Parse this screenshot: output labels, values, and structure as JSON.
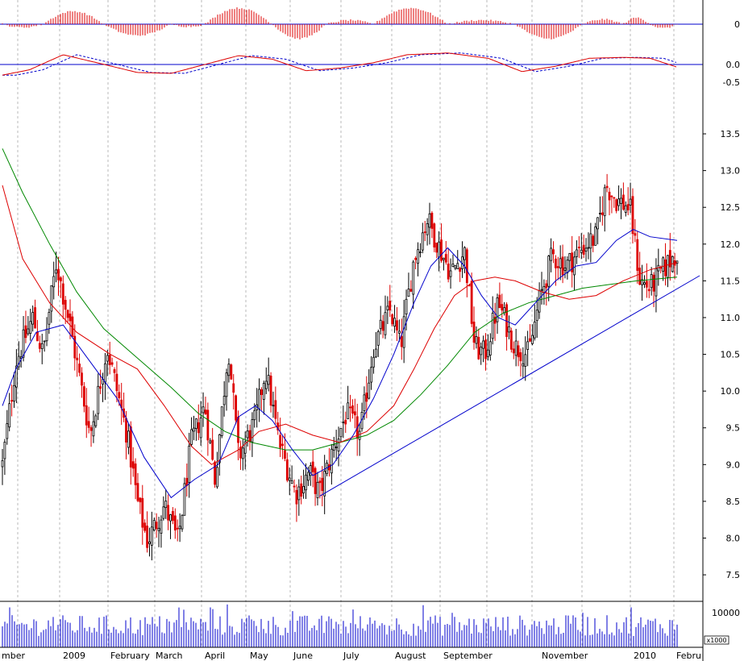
{
  "chart_data": {
    "type": "candlestick",
    "months": [
      "mber",
      "2009",
      "February",
      "March",
      "April",
      "May",
      "June",
      "July",
      "August",
      "September",
      "November",
      "2010",
      "Febru"
    ],
    "price_ticks": [
      "7.5",
      "8.0",
      "8.5",
      "9.0",
      "9.5",
      "10.0",
      "10.5",
      "11.0",
      "11.5",
      "12.0",
      "12.5",
      "13.0",
      "13.5"
    ],
    "price_range": [
      7.15,
      13.95
    ],
    "macd_hist_ticks": [
      "0"
    ],
    "macd_ticks": [
      "0.0",
      "-0.5"
    ],
    "volume_ticks": [
      "10000"
    ],
    "volume_unit": "x1000",
    "colors": {
      "up": "#000000",
      "down": "#dd0000",
      "ma_short": "#0000cc",
      "ma_mid": "#dd0000",
      "ma_long": "#008800",
      "trendline": "#0000cc",
      "macd": "#dd0000",
      "signal": "#0000cc",
      "volume": "#0000cc"
    },
    "trendline": {
      "from": [
        0.47,
        8.57
      ],
      "to": [
        1.0,
        11.57
      ]
    },
    "price_path": [
      [
        0.0,
        9.0
      ],
      [
        0.02,
        10.4
      ],
      [
        0.045,
        11.0
      ],
      [
        0.06,
        10.5
      ],
      [
        0.08,
        11.75
      ],
      [
        0.1,
        10.9
      ],
      [
        0.13,
        9.4
      ],
      [
        0.155,
        10.6
      ],
      [
        0.185,
        9.4
      ],
      [
        0.2,
        8.5
      ],
      [
        0.215,
        7.95
      ],
      [
        0.24,
        8.45
      ],
      [
        0.26,
        7.95
      ],
      [
        0.28,
        9.3
      ],
      [
        0.3,
        9.8
      ],
      [
        0.315,
        8.8
      ],
      [
        0.335,
        10.6
      ],
      [
        0.35,
        9.1
      ],
      [
        0.375,
        9.6
      ],
      [
        0.39,
        10.3
      ],
      [
        0.41,
        9.3
      ],
      [
        0.435,
        8.6
      ],
      [
        0.455,
        8.9
      ],
      [
        0.47,
        8.6
      ],
      [
        0.49,
        9.2
      ],
      [
        0.51,
        9.7
      ],
      [
        0.53,
        9.4
      ],
      [
        0.55,
        10.6
      ],
      [
        0.575,
        11.1
      ],
      [
        0.59,
        10.6
      ],
      [
        0.61,
        11.8
      ],
      [
        0.63,
        12.35
      ],
      [
        0.65,
        11.9
      ],
      [
        0.665,
        11.6
      ],
      [
        0.685,
        11.9
      ],
      [
        0.7,
        10.6
      ],
      [
        0.715,
        10.5
      ],
      [
        0.735,
        11.2
      ],
      [
        0.76,
        10.6
      ],
      [
        0.78,
        10.5
      ],
      [
        0.795,
        11.2
      ],
      [
        0.815,
        11.85
      ],
      [
        0.835,
        11.7
      ],
      [
        0.86,
        11.95
      ],
      [
        0.88,
        12.1
      ],
      [
        0.895,
        12.8
      ],
      [
        0.91,
        12.6
      ],
      [
        0.93,
        12.5
      ],
      [
        0.945,
        11.5
      ],
      [
        0.96,
        11.4
      ],
      [
        0.975,
        11.6
      ],
      [
        1.0,
        11.9
      ]
    ],
    "ma_short": [
      [
        0.0,
        9.8
      ],
      [
        0.02,
        10.3
      ],
      [
        0.05,
        10.8
      ],
      [
        0.09,
        10.9
      ],
      [
        0.13,
        10.4
      ],
      [
        0.17,
        9.9
      ],
      [
        0.21,
        9.1
      ],
      [
        0.25,
        8.55
      ],
      [
        0.285,
        8.8
      ],
      [
        0.32,
        9.0
      ],
      [
        0.35,
        9.65
      ],
      [
        0.375,
        9.8
      ],
      [
        0.4,
        9.6
      ],
      [
        0.43,
        9.2
      ],
      [
        0.46,
        8.85
      ],
      [
        0.49,
        9.0
      ],
      [
        0.52,
        9.4
      ],
      [
        0.55,
        9.9
      ],
      [
        0.58,
        10.5
      ],
      [
        0.61,
        11.2
      ],
      [
        0.635,
        11.7
      ],
      [
        0.66,
        11.95
      ],
      [
        0.685,
        11.7
      ],
      [
        0.71,
        11.3
      ],
      [
        0.735,
        11.0
      ],
      [
        0.76,
        10.9
      ],
      [
        0.79,
        11.2
      ],
      [
        0.82,
        11.5
      ],
      [
        0.85,
        11.7
      ],
      [
        0.88,
        11.75
      ],
      [
        0.91,
        12.05
      ],
      [
        0.935,
        12.2
      ],
      [
        0.96,
        12.1
      ],
      [
        1.0,
        12.05
      ]
    ],
    "ma_mid": [
      [
        0.0,
        12.8
      ],
      [
        0.03,
        11.8
      ],
      [
        0.07,
        11.2
      ],
      [
        0.11,
        10.8
      ],
      [
        0.16,
        10.5
      ],
      [
        0.2,
        10.3
      ],
      [
        0.24,
        9.8
      ],
      [
        0.28,
        9.25
      ],
      [
        0.31,
        9.0
      ],
      [
        0.35,
        9.2
      ],
      [
        0.38,
        9.45
      ],
      [
        0.42,
        9.55
      ],
      [
        0.46,
        9.4
      ],
      [
        0.5,
        9.3
      ],
      [
        0.54,
        9.45
      ],
      [
        0.58,
        9.8
      ],
      [
        0.61,
        10.3
      ],
      [
        0.64,
        10.85
      ],
      [
        0.67,
        11.3
      ],
      [
        0.7,
        11.5
      ],
      [
        0.73,
        11.55
      ],
      [
        0.76,
        11.5
      ],
      [
        0.8,
        11.35
      ],
      [
        0.84,
        11.25
      ],
      [
        0.88,
        11.3
      ],
      [
        0.92,
        11.5
      ],
      [
        0.96,
        11.65
      ],
      [
        1.0,
        11.75
      ]
    ],
    "ma_long": [
      [
        0.0,
        13.3
      ],
      [
        0.03,
        12.7
      ],
      [
        0.07,
        12.0
      ],
      [
        0.11,
        11.35
      ],
      [
        0.15,
        10.85
      ],
      [
        0.2,
        10.45
      ],
      [
        0.25,
        10.05
      ],
      [
        0.29,
        9.7
      ],
      [
        0.33,
        9.45
      ],
      [
        0.37,
        9.3
      ],
      [
        0.42,
        9.2
      ],
      [
        0.46,
        9.2
      ],
      [
        0.5,
        9.3
      ],
      [
        0.54,
        9.4
      ],
      [
        0.58,
        9.6
      ],
      [
        0.62,
        9.95
      ],
      [
        0.66,
        10.35
      ],
      [
        0.7,
        10.8
      ],
      [
        0.74,
        11.05
      ],
      [
        0.78,
        11.2
      ],
      [
        0.82,
        11.3
      ],
      [
        0.86,
        11.4
      ],
      [
        0.9,
        11.45
      ],
      [
        0.94,
        11.5
      ],
      [
        1.0,
        11.55
      ]
    ]
  }
}
